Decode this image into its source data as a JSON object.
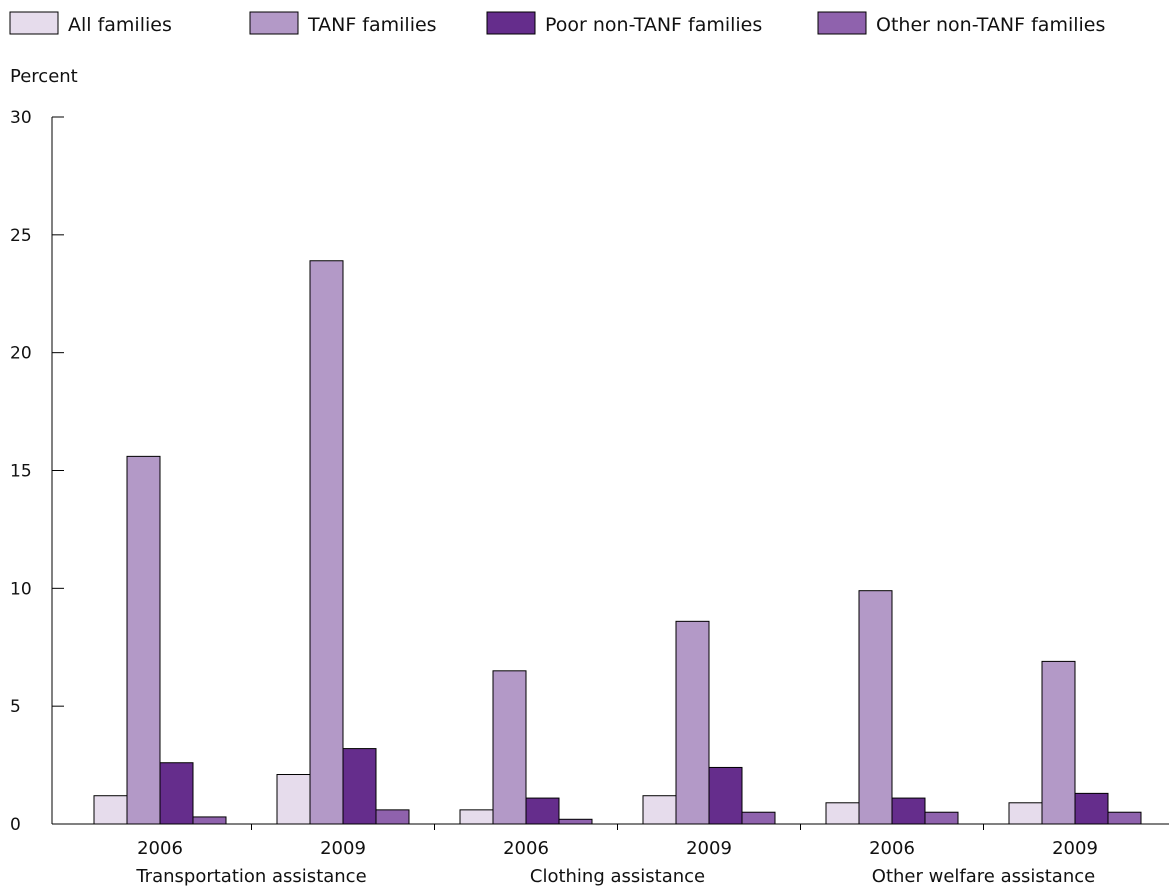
{
  "chart_data": {
    "type": "bar",
    "ylabel": "Percent",
    "ylim": [
      0,
      30
    ],
    "yticks": [
      0,
      5,
      10,
      15,
      20,
      25,
      30
    ],
    "legend_position": "top",
    "categories": [
      "2006",
      "2009",
      "2006",
      "2009",
      "2006",
      "2009"
    ],
    "groups": [
      {
        "label": "Transportation assistance",
        "categories": [
          "2006",
          "2009"
        ]
      },
      {
        "label": "Clothing assistance",
        "categories": [
          "2006",
          "2009"
        ]
      },
      {
        "label": "Other welfare assistance",
        "categories": [
          "2006",
          "2009"
        ]
      }
    ],
    "series": [
      {
        "name": "All families",
        "color": "#e6dcec",
        "values": [
          1.2,
          2.1,
          0.6,
          1.2,
          0.9,
          0.9
        ]
      },
      {
        "name": "TANF families",
        "color": "#b399c7",
        "values": [
          15.6,
          23.9,
          6.5,
          8.6,
          9.9,
          6.9
        ]
      },
      {
        "name": "Poor non-TANF families",
        "color": "#652d8c",
        "values": [
          2.6,
          3.2,
          1.1,
          2.4,
          1.1,
          1.3
        ]
      },
      {
        "name": "Other non-TANF families",
        "color": "#8f62ad",
        "values": [
          0.3,
          0.6,
          0.2,
          0.5,
          0.5,
          0.5
        ]
      }
    ]
  }
}
